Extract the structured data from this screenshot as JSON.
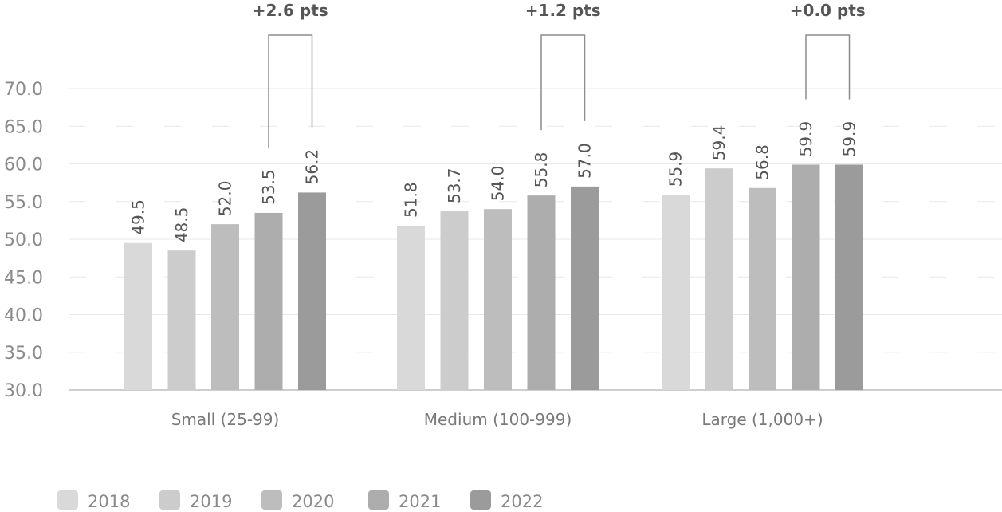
{
  "chart_data": {
    "type": "bar",
    "categories": [
      "Small (25-99)",
      "Medium (100-999)",
      "Large (1,000+)"
    ],
    "series": [
      {
        "name": "2018",
        "color": "#d9d9d9",
        "values": [
          49.5,
          51.8,
          55.9
        ]
      },
      {
        "name": "2019",
        "color": "#cccccc",
        "values": [
          48.5,
          53.7,
          59.4
        ]
      },
      {
        "name": "2020",
        "color": "#bdbdbd",
        "values": [
          52.0,
          54.0,
          56.8
        ]
      },
      {
        "name": "2021",
        "color": "#adadad",
        "values": [
          53.5,
          55.8,
          59.9
        ]
      },
      {
        "name": "2022",
        "color": "#9b9b9b",
        "values": [
          56.2,
          57.0,
          59.9
        ]
      }
    ],
    "data_labels": [
      [
        "49.5",
        "48.5",
        "52.0",
        "53.5",
        "56.2"
      ],
      [
        "51.8",
        "53.7",
        "54.0",
        "55.8",
        "57.0"
      ],
      [
        "55.9",
        "59.4",
        "56.8",
        "59.9",
        "59.9"
      ]
    ],
    "annotations": [
      "+2.6 pts",
      "+1.2 pts",
      "+0.0 pts"
    ],
    "ylim": [
      30,
      70
    ],
    "yticks": [
      30,
      35,
      40,
      45,
      50,
      55,
      60,
      65,
      70
    ],
    "ytick_labels": [
      "30.0",
      "35.0",
      "40.0",
      "45.0",
      "50.0",
      "55.0",
      "60.0",
      "65.0",
      "70.0"
    ],
    "title": "",
    "xlabel": "",
    "ylabel": "",
    "grid": true,
    "legend": "bottom-left"
  }
}
